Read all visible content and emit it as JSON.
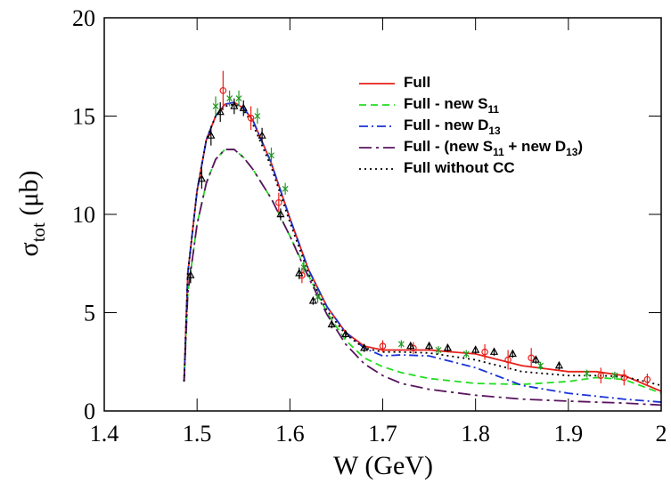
{
  "chart_data": {
    "type": "line",
    "x_label": "W (GeV)",
    "y_label": "σtot (μb)",
    "xlim": [
      1.4,
      2
    ],
    "ylim": [
      0,
      20
    ],
    "xticks": [
      1.4,
      1.5,
      1.6,
      1.7,
      1.8,
      1.9,
      2
    ],
    "yticks": [
      0,
      5,
      10,
      15,
      20
    ],
    "legend": "top-right",
    "x": [
      1.486,
      1.49,
      1.5,
      1.51,
      1.52,
      1.53,
      1.54,
      1.55,
      1.56,
      1.58,
      1.6,
      1.62,
      1.64,
      1.66,
      1.68,
      1.7,
      1.72,
      1.75,
      1.8,
      1.85,
      1.9,
      1.93,
      1.96,
      2.0
    ],
    "series": [
      {
        "name": "Full",
        "color": "#e8201a",
        "dash": "solid",
        "values": [
          1.5,
          7,
          11.2,
          13.8,
          15.0,
          15.6,
          15.7,
          15.4,
          14.8,
          12.6,
          9.8,
          7.2,
          5.3,
          4.0,
          3.3,
          3.1,
          3.1,
          3.1,
          2.9,
          2.3,
          2.0,
          2.0,
          1.8,
          1.0
        ]
      },
      {
        "name": "Full - new S11",
        "color": "#22dd22",
        "dash": "dashed",
        "values": [
          1.5,
          6,
          9.5,
          11.6,
          12.8,
          13.3,
          13.3,
          12.9,
          12.3,
          10.8,
          8.9,
          6.9,
          5.0,
          3.6,
          2.7,
          2.25,
          1.95,
          1.65,
          1.4,
          1.35,
          1.5,
          1.7,
          1.6,
          0.9
        ]
      },
      {
        "name": "Full - new D13",
        "color": "#1a33d6",
        "dash": "dashdot",
        "values": [
          1.5,
          7,
          11.2,
          13.8,
          15.0,
          15.6,
          15.7,
          15.4,
          14.8,
          12.6,
          9.8,
          7.2,
          5.3,
          4.0,
          3.2,
          2.8,
          2.85,
          2.8,
          2.2,
          1.3,
          0.9,
          0.75,
          0.6,
          0.45
        ]
      },
      {
        "name": "Full - (new S11 + new D13)",
        "color": "#5a1560",
        "dash": "longdashdot",
        "values": [
          1.5,
          6,
          9.5,
          11.6,
          12.8,
          13.3,
          13.3,
          12.9,
          12.3,
          10.8,
          8.9,
          6.8,
          4.9,
          3.4,
          2.4,
          1.8,
          1.4,
          1.1,
          0.8,
          0.6,
          0.5,
          0.45,
          0.4,
          0.3
        ]
      },
      {
        "name": "Full without CC",
        "color": "#000000",
        "dash": "dotted",
        "values": [
          1.5,
          7,
          11.2,
          13.8,
          15.0,
          15.5,
          15.6,
          15.3,
          14.6,
          12.4,
          9.6,
          7.0,
          5.1,
          3.9,
          3.2,
          3.0,
          3.0,
          2.95,
          2.6,
          2.0,
          1.8,
          1.8,
          1.75,
          1.3
        ]
      }
    ],
    "points": [
      {
        "marker": "circle",
        "color": "#e8201a",
        "x": [
          1.528,
          1.558,
          1.588,
          1.613,
          1.7,
          1.733,
          1.81,
          1.835,
          1.86,
          1.935,
          1.96,
          1.985
        ],
        "values": [
          16.3,
          14.9,
          10.6,
          6.9,
          3.3,
          3.2,
          3.0,
          2.6,
          2.7,
          1.8,
          1.7,
          1.6
        ],
        "errors": [
          1.0,
          0.6,
          0.5,
          0.4,
          0.3,
          0.3,
          0.4,
          0.5,
          0.5,
          0.4,
          0.4,
          0.3
        ]
      },
      {
        "marker": "cross",
        "color": "#1f9a1f",
        "x": [
          1.52,
          1.535,
          1.545,
          1.565,
          1.58,
          1.595,
          1.615,
          1.63,
          1.72,
          1.76,
          1.79,
          1.87,
          1.92,
          1.95
        ],
        "values": [
          15.5,
          15.9,
          15.9,
          15.0,
          13.0,
          11.3,
          7.3,
          5.8,
          3.4,
          3.1,
          2.9,
          2.3,
          1.9,
          1.8
        ],
        "errors": [
          0.5,
          0.4,
          0.4,
          0.4,
          0.4,
          0.3,
          0.3,
          0.3,
          0.2,
          0.2,
          0.2,
          0.2,
          0.2,
          0.2
        ]
      },
      {
        "marker": "triangle",
        "color": "#000000",
        "x": [
          1.493,
          1.505,
          1.515,
          1.525,
          1.54,
          1.55,
          1.57,
          1.59,
          1.61,
          1.625,
          1.645,
          1.66,
          1.68,
          1.73,
          1.75,
          1.77,
          1.8,
          1.82,
          1.84,
          1.865,
          1.89
        ],
        "values": [
          6.9,
          11.8,
          14.0,
          15.2,
          15.5,
          15.4,
          14.0,
          10.0,
          7.0,
          5.6,
          4.4,
          3.9,
          3.2,
          3.3,
          3.3,
          3.2,
          3.1,
          3.0,
          2.9,
          2.6,
          2.3
        ],
        "errors": [
          0.4,
          0.5,
          0.5,
          0.5,
          0.4,
          0.4,
          0.4,
          0.3,
          0.3,
          0.2,
          0.2,
          0.2,
          0.2,
          0.2,
          0.2,
          0.2,
          0.2,
          0.2,
          0.2,
          0.2,
          0.2
        ]
      }
    ]
  }
}
